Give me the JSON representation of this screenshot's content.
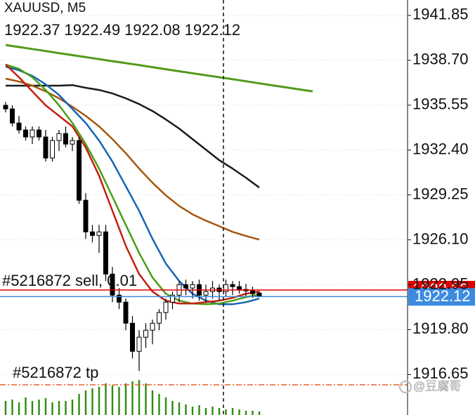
{
  "chart_data": {
    "type": "candlestick",
    "title": "XAUUSD, M5",
    "ylim": [
      1913.81,
      1942.93
    ],
    "yticks": [
      1941.85,
      {
        "value": 1938.7,
        "label": "1938.70"
      },
      1935.55,
      {
        "value": 1932.4,
        "label": "1932.40"
      },
      1929.25,
      {
        "value": 1926.1,
        "label": "1926.10"
      },
      1922.95,
      {
        "value": 1919.8,
        "label": "1919.80"
      },
      1916.65
    ],
    "grid": true,
    "open": [
      1935.54,
      1935.29,
      1934.3,
      1933.81,
      1933.32,
      1933.81,
      1933.32,
      1931.84,
      1933.07,
      1933.56,
      1932.82,
      1933.07,
      1928.88,
      1926.66,
      1926.41,
      1926.66,
      1923.7,
      1922.22,
      1921.73,
      1920.25,
      1918.28,
      1919.27,
      1919.76,
      1920.25,
      1921.0,
      1921.73,
      1922.22,
      1922.96,
      1922.72,
      1922.96,
      1922.22,
      1922.47,
      1922.72,
      1922.47,
      1922.96,
      1922.82,
      1922.62,
      1922.52,
      1922.37
    ],
    "high": [
      1935.78,
      1935.54,
      1934.8,
      1934.06,
      1934.06,
      1934.06,
      1933.81,
      1933.32,
      1933.81,
      1934.06,
      1933.32,
      1933.32,
      1929.37,
      1927.15,
      1927.15,
      1927.15,
      1924.2,
      1922.72,
      1921.98,
      1920.75,
      1919.76,
      1920.25,
      1920.5,
      1921.24,
      1921.98,
      1922.47,
      1923.21,
      1923.31,
      1923.21,
      1923.31,
      1922.96,
      1923.21,
      1922.96,
      1923.31,
      1923.21,
      1923.21,
      1923.01,
      1922.82,
      1922.49
    ],
    "low": [
      1935.04,
      1934.06,
      1933.56,
      1933.07,
      1932.82,
      1933.07,
      1931.59,
      1931.59,
      1932.33,
      1932.58,
      1932.33,
      1928.63,
      1926.17,
      1925.92,
      1925.18,
      1923.21,
      1921.73,
      1921.24,
      1919.76,
      1917.79,
      1916.9,
      1918.52,
      1918.77,
      1919.76,
      1920.5,
      1921.24,
      1921.73,
      1922.22,
      1921.98,
      1921.83,
      1921.73,
      1921.98,
      1921.83,
      1922.12,
      1922.22,
      1922.32,
      1922.08,
      1922.03,
      1922.08
    ],
    "close": [
      1935.29,
      1934.3,
      1933.81,
      1933.32,
      1933.81,
      1933.32,
      1931.84,
      1933.07,
      1933.56,
      1932.82,
      1933.07,
      1928.88,
      1926.66,
      1926.41,
      1926.66,
      1923.7,
      1922.22,
      1921.73,
      1920.25,
      1918.28,
      1919.27,
      1919.76,
      1920.25,
      1921.0,
      1921.73,
      1922.22,
      1922.96,
      1922.72,
      1922.96,
      1922.22,
      1922.47,
      1922.72,
      1922.47,
      1922.96,
      1922.82,
      1922.62,
      1922.52,
      1922.32,
      1922.12
    ],
    "bid_color": "#3d8be0",
    "series": [
      {
        "color": "#4f9a18",
        "width": 3,
        "values": [
          1939.77,
          1939.63,
          1939.49,
          1939.35,
          1939.2,
          1939.06,
          1938.92,
          1938.78,
          1938.64,
          1938.5,
          1938.36,
          1938.22,
          1938.07,
          1937.93,
          1937.79,
          1937.65,
          1937.51,
          1937.37,
          1937.23,
          1937.08,
          1936.94,
          1936.8,
          1936.66,
          1936.52
        ]
      },
      {
        "color": "#1a1a1a",
        "width": 2.5,
        "values": [
          1936.92,
          1936.92,
          1936.92,
          1936.92,
          1936.92,
          1936.96,
          1936.77,
          1936.62,
          1936.37,
          1936.03,
          1935.63,
          1935.14,
          1934.55,
          1933.91,
          1933.17,
          1932.43,
          1931.69,
          1931.1,
          1930.46,
          1929.77
        ]
      },
      {
        "color": "#a5560e",
        "width": 2.5,
        "values": [
          1937.41,
          1937.21,
          1936.92,
          1936.52,
          1936.03,
          1935.44,
          1934.8,
          1934.06,
          1933.17,
          1932.18,
          1931.1,
          1930.11,
          1929.22,
          1928.48,
          1927.89,
          1927.45,
          1927.06,
          1926.66,
          1926.37,
          1926.12
        ]
      },
      {
        "color": "#1565b4",
        "width": 2.5,
        "values": [
          1938.25,
          1938.0,
          1937.61,
          1937.01,
          1936.27,
          1935.29,
          1934.3,
          1933.07,
          1931.59,
          1929.87,
          1928.14,
          1926.17,
          1924.44,
          1923.21,
          1922.32,
          1921.83,
          1921.58,
          1921.58,
          1921.73,
          1921.98
        ]
      },
      {
        "color": "#4a9e12",
        "width": 2.5,
        "values": [
          1938.4,
          1938.1,
          1937.51,
          1936.62,
          1935.54,
          1934.3,
          1932.82,
          1931.1,
          1929.13,
          1927.15,
          1925.18,
          1923.46,
          1922.32,
          1921.83,
          1921.63,
          1921.58,
          1921.63,
          1921.83,
          1922.08,
          1922.27
        ]
      },
      {
        "color": "#c4200e",
        "width": 2.5,
        "values": [
          1938.4,
          1937.51,
          1936.52,
          1935.54,
          1934.8,
          1934.06,
          1932.58,
          1930.6,
          1928.14,
          1925.68,
          1923.7,
          1922.47,
          1921.83,
          1921.63,
          1921.63,
          1921.73,
          1921.83,
          1922.03,
          1922.32,
          1922.47
        ]
      }
    ],
    "order_lines": [
      {
        "label": "#5216872 sell, 0.01",
        "value": 1922.58,
        "color": "#e00000"
      },
      {
        "label": "#5216872 tp",
        "value": 1915.93,
        "color": "#e8602c"
      }
    ],
    "volume": {
      "color": "#2e8b10",
      "ylim": [
        0,
        100
      ],
      "values": [
        20,
        22,
        18,
        25,
        20,
        22,
        24,
        18,
        20,
        20,
        22,
        30,
        35,
        38,
        40,
        45,
        42,
        40,
        45,
        48,
        50,
        45,
        35,
        30,
        25,
        20,
        18,
        15,
        12,
        14,
        10,
        12,
        10,
        8,
        10,
        8,
        6,
        6,
        5
      ]
    },
    "watermark": "@豆腐哥"
  }
}
